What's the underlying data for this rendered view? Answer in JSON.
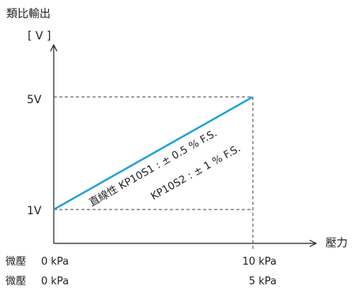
{
  "chart_data": {
    "type": "line",
    "ylabel": "類比輸出",
    "yunit": "[ V ]",
    "xlabel": "壓力",
    "ylim": [
      1,
      5
    ],
    "y_ticks": [
      "1V",
      "5V"
    ],
    "x_rows": [
      {
        "name": "微壓",
        "start": "0 kPa",
        "end": "10 kPa"
      },
      {
        "name": "微壓",
        "start": "0 kPa",
        "end": "5 kPa"
      }
    ],
    "series": [
      {
        "x": [
          0,
          1
        ],
        "y": [
          1,
          5
        ]
      }
    ],
    "annotations": [
      "直線性 KP10S1 : ± 0.5 % F.S.",
      "KP10S2 : ± 1 % F.S."
    ],
    "grid": false,
    "colors": {
      "line": "#1aa0d8",
      "axis": "#222222",
      "guide": "#444444"
    }
  }
}
